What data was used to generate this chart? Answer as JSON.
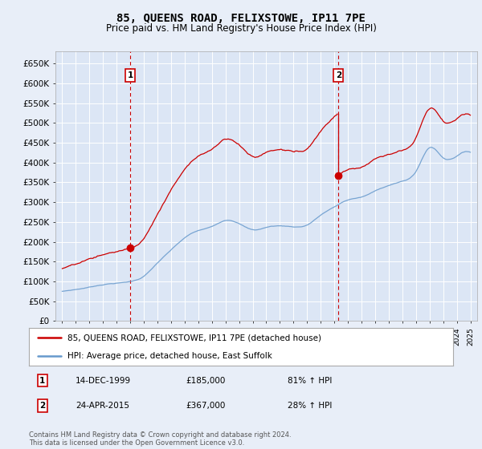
{
  "title": "85, QUEENS ROAD, FELIXSTOWE, IP11 7PE",
  "subtitle": "Price paid vs. HM Land Registry's House Price Index (HPI)",
  "bg_color": "#e8eef8",
  "plot_bg_color": "#dce6f5",
  "grid_color": "#ffffff",
  "red_color": "#cc0000",
  "blue_color": "#6699cc",
  "annotation1": {
    "label": "1",
    "date_str": "14-DEC-1999",
    "price": 185000,
    "note": "81% ↑ HPI",
    "x_year": 2000.0
  },
  "annotation2": {
    "label": "2",
    "date_str": "24-APR-2015",
    "price": 367000,
    "note": "28% ↑ HPI",
    "x_year": 2015.3
  },
  "legend_line1": "85, QUEENS ROAD, FELIXSTOWE, IP11 7PE (detached house)",
  "legend_line2": "HPI: Average price, detached house, East Suffolk",
  "footnote": "Contains HM Land Registry data © Crown copyright and database right 2024.\nThis data is licensed under the Open Government Licence v3.0.",
  "ylim": [
    0,
    680000
  ],
  "yticks": [
    0,
    50000,
    100000,
    150000,
    200000,
    250000,
    300000,
    350000,
    400000,
    450000,
    500000,
    550000,
    600000,
    650000
  ],
  "xlim_start": 1994.5,
  "xlim_end": 2025.5,
  "dot1_x": 2000.0,
  "dot1_y": 185000,
  "dot2_x": 2015.3,
  "dot2_y": 367000
}
